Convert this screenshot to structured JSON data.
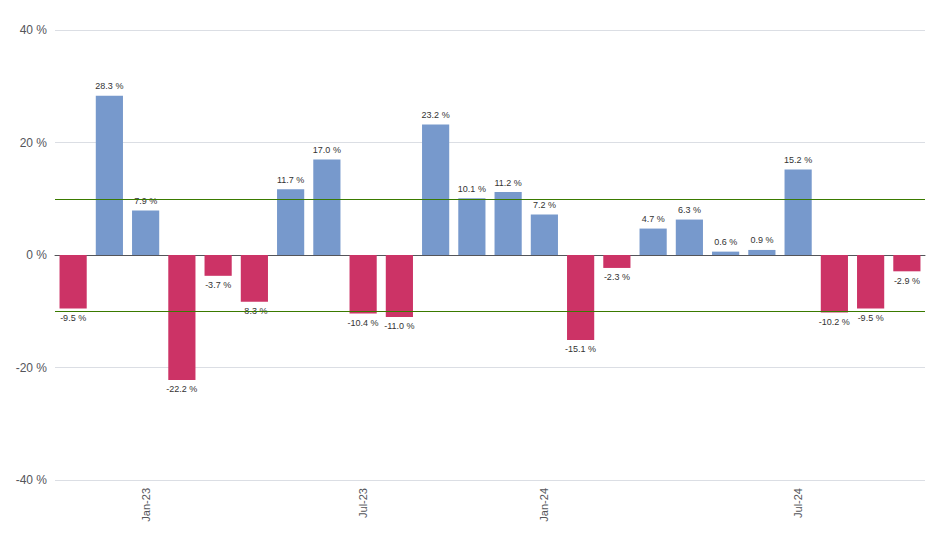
{
  "chart_data": {
    "type": "bar",
    "categories": [
      null,
      null,
      "Jan-23",
      null,
      null,
      null,
      null,
      null,
      "Jul-23",
      null,
      null,
      null,
      null,
      "Jan-24",
      null,
      null,
      null,
      null,
      null,
      null,
      "Jul-24",
      null,
      null,
      null
    ],
    "values": [
      -9.5,
      28.3,
      7.9,
      -22.2,
      -3.7,
      -8.3,
      11.7,
      17.0,
      -10.4,
      -11.0,
      23.2,
      10.1,
      11.2,
      7.2,
      -15.1,
      -2.3,
      4.7,
      6.3,
      0.6,
      0.9,
      15.2,
      -10.2,
      -9.5,
      -2.9
    ],
    "value_labels": [
      "-9.5 %",
      "28.3 %",
      "7.9 %",
      "-22.2 %",
      "-3.7 %",
      "-8.3 %",
      "11.7 %",
      "17.0 %",
      "-10.4 %",
      "-11.0 %",
      "23.2 %",
      "10.1 %",
      "11.2 %",
      "7.2 %",
      "-15.1 %",
      "-2.3 %",
      "4.7 %",
      "6.3 %",
      "0.6 %",
      "0.9 %",
      "15.2 %",
      "-10.2 %",
      "-9.5 %",
      "-2.9 %"
    ],
    "colors": [
      "#cc3366",
      "#7799cc",
      "#7799cc",
      "#cc3366",
      "#cc3366",
      "#cc3366",
      "#7799cc",
      "#7799cc",
      "#cc3366",
      "#cc3366",
      "#7799cc",
      "#7799cc",
      "#7799cc",
      "#7799cc",
      "#cc3366",
      "#cc3366",
      "#7799cc",
      "#7799cc",
      "#7799cc",
      "#7799cc",
      "#7799cc",
      "#cc3366",
      "#cc3366",
      "#cc3366"
    ],
    "data_labels": true,
    "ylim": [
      -40,
      40
    ],
    "yticks": [
      {
        "value": -40,
        "label": "-40 %"
      },
      {
        "value": -20,
        "label": "-20 %"
      },
      {
        "value": 0,
        "label": "0 %"
      },
      {
        "value": 20,
        "label": "20 %"
      },
      {
        "value": 40,
        "label": "40 %"
      }
    ],
    "grid": true,
    "hlines": {
      "values": [
        10.0,
        -10.0
      ],
      "color": "#3a7a00"
    }
  }
}
